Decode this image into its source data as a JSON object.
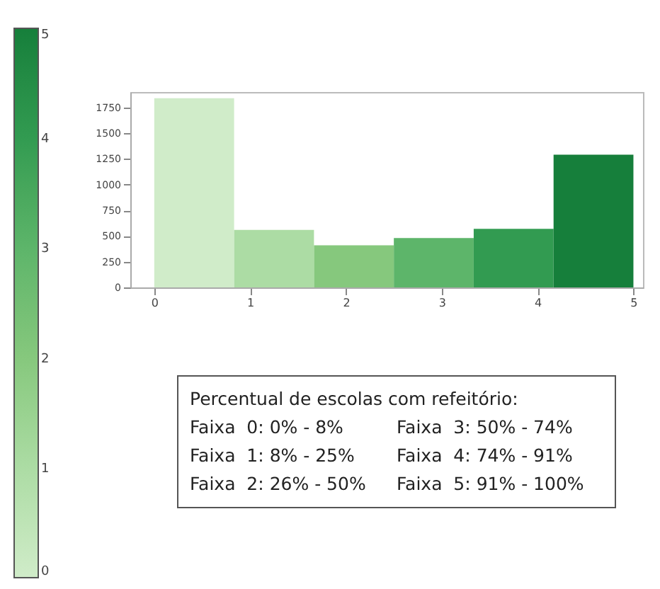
{
  "chart_data": {
    "type": "histogram",
    "bins": [
      0,
      0.8333,
      1.6667,
      2.5,
      3.3333,
      4.1667,
      5
    ],
    "values": [
      1840,
      560,
      410,
      480,
      570,
      1290
    ],
    "colors": [
      "#d0ecc9",
      "#acdca4",
      "#86c87d",
      "#5db56a",
      "#329b51",
      "#167f3b"
    ],
    "cvalues": [
      0,
      1,
      2,
      3,
      4,
      5
    ],
    "clim": [
      0,
      5
    ],
    "cticks": [
      0,
      1,
      2,
      3,
      4,
      5
    ],
    "xlim": [
      -0.25,
      5.1
    ],
    "xticks": [
      0,
      1,
      2,
      3,
      4,
      5
    ],
    "ylim": [
      0,
      1900
    ],
    "yticks": [
      0,
      250,
      500,
      750,
      1000,
      1250,
      1500,
      1750
    ],
    "grid": false,
    "annotations": [
      "Percentual de escolas com refeitório:",
      "Faixa  0: 0% - 8%",
      "Faixa  1: 8% - 25%",
      "Faixa  2: 26% - 50%",
      "Faixa  3: 50% - 74%",
      "Faixa  4: 74% - 91%",
      "Faixa  5: 91% - 100%"
    ]
  }
}
